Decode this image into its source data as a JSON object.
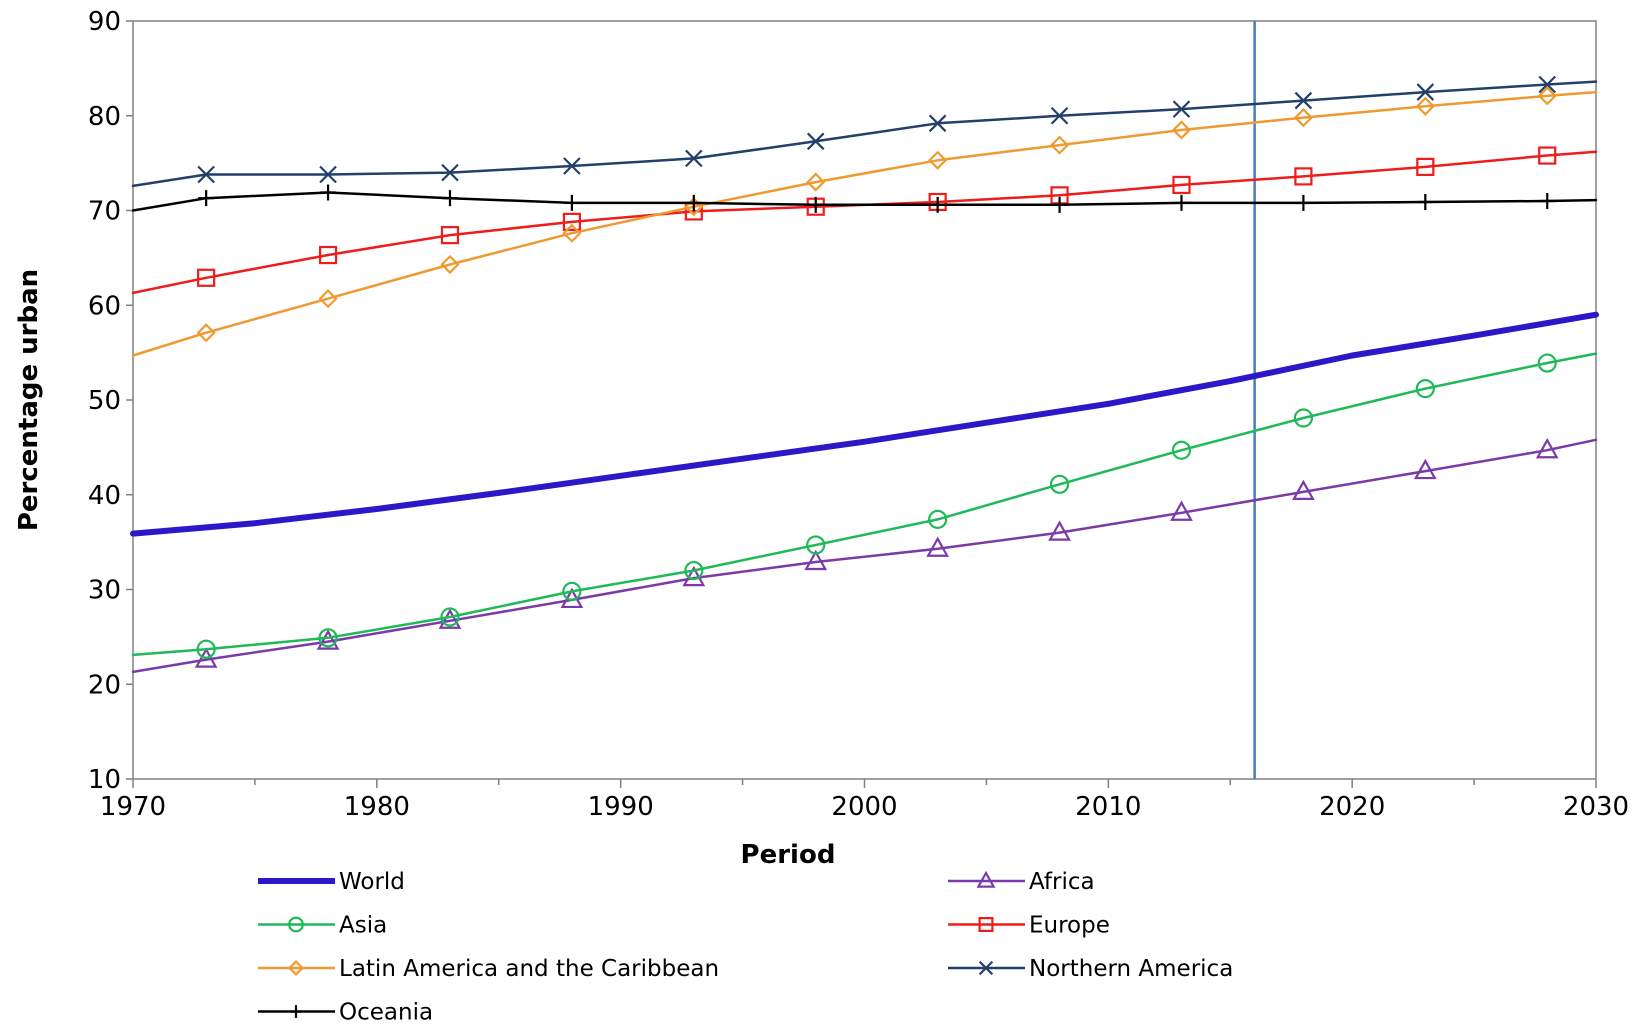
{
  "chart_data": {
    "type": "line",
    "title": "",
    "xlabel": "Period",
    "ylabel": "Percentage urban",
    "xlim": [
      1970,
      2030
    ],
    "ylim": [
      10,
      90
    ],
    "x_ticks": [
      "1970",
      "1980",
      "1990",
      "2000",
      "2010",
      "2020",
      "2030"
    ],
    "y_ticks": [
      "10",
      "20",
      "30",
      "40",
      "50",
      "60",
      "70",
      "80",
      "90"
    ],
    "grid": false,
    "reference_line": {
      "x": 2016,
      "color": "#4a7ebb"
    },
    "legend_position": "bottom",
    "series": [
      {
        "name": "World",
        "color": "#2b18c8",
        "marker": "none",
        "line_width": 6,
        "x": [
          1970,
          1975,
          1980,
          1985,
          1990,
          1995,
          2000,
          2005,
          2010,
          2015,
          2020,
          2025,
          2030
        ],
        "y": [
          35.9,
          37.0,
          38.5,
          40.2,
          42.0,
          43.8,
          45.6,
          47.6,
          49.6,
          52.0,
          54.7,
          56.8,
          59.0
        ]
      },
      {
        "name": "Africa",
        "color": "#7a3aa8",
        "marker": "triangle",
        "line_width": 2.5,
        "x": [
          1970,
          1973,
          1978,
          1983,
          1988,
          1993,
          1998,
          2003,
          2008,
          2013,
          2018,
          2023,
          2028,
          2030
        ],
        "y": [
          21.3,
          22.6,
          24.5,
          26.7,
          28.9,
          31.2,
          32.9,
          34.3,
          36.0,
          38.1,
          40.3,
          42.5,
          44.7,
          45.8
        ]
      },
      {
        "name": "Asia",
        "color": "#1fba58",
        "marker": "circle",
        "line_width": 2.5,
        "x": [
          1970,
          1973,
          1978,
          1983,
          1988,
          1993,
          1998,
          2003,
          2008,
          2013,
          2018,
          2023,
          2028,
          2030
        ],
        "y": [
          23.1,
          23.7,
          24.9,
          27.1,
          29.8,
          32.0,
          34.7,
          37.4,
          41.1,
          44.7,
          48.1,
          51.2,
          53.9,
          54.9
        ]
      },
      {
        "name": "Europe",
        "color": "#ee1c1c",
        "marker": "square",
        "line_width": 2.5,
        "x": [
          1970,
          1973,
          1978,
          1983,
          1988,
          1993,
          1998,
          2003,
          2008,
          2013,
          2018,
          2023,
          2028,
          2030
        ],
        "y": [
          61.3,
          62.9,
          65.3,
          67.4,
          68.8,
          69.9,
          70.4,
          70.9,
          71.6,
          72.7,
          73.6,
          74.6,
          75.8,
          76.2
        ]
      },
      {
        "name": "Latin America and the Caribbean",
        "color": "#ef9a30",
        "marker": "diamond",
        "line_width": 2.5,
        "x": [
          1970,
          1973,
          1978,
          1983,
          1988,
          1993,
          1998,
          2003,
          2008,
          2013,
          2018,
          2023,
          2028,
          2030
        ],
        "y": [
          54.7,
          57.1,
          60.7,
          64.3,
          67.6,
          70.4,
          73.0,
          75.3,
          76.9,
          78.5,
          79.8,
          81.0,
          82.1,
          82.5
        ]
      },
      {
        "name": "Northern America",
        "color": "#243f6a",
        "marker": "x",
        "line_width": 2.5,
        "x": [
          1970,
          1973,
          1978,
          1983,
          1988,
          1993,
          1998,
          2003,
          2008,
          2013,
          2018,
          2023,
          2028,
          2030
        ],
        "y": [
          72.6,
          73.8,
          73.8,
          74.0,
          74.7,
          75.5,
          77.3,
          79.2,
          80.0,
          80.7,
          81.6,
          82.5,
          83.3,
          83.6
        ]
      },
      {
        "name": "Oceania",
        "color": "#000000",
        "marker": "plus",
        "line_width": 2.5,
        "x": [
          1970,
          1973,
          1978,
          1983,
          1988,
          1993,
          1998,
          2003,
          2008,
          2013,
          2018,
          2023,
          2028,
          2030
        ],
        "y": [
          70.0,
          71.3,
          71.9,
          71.3,
          70.8,
          70.8,
          70.6,
          70.6,
          70.6,
          70.8,
          70.8,
          70.9,
          71.0,
          71.1
        ]
      }
    ]
  }
}
